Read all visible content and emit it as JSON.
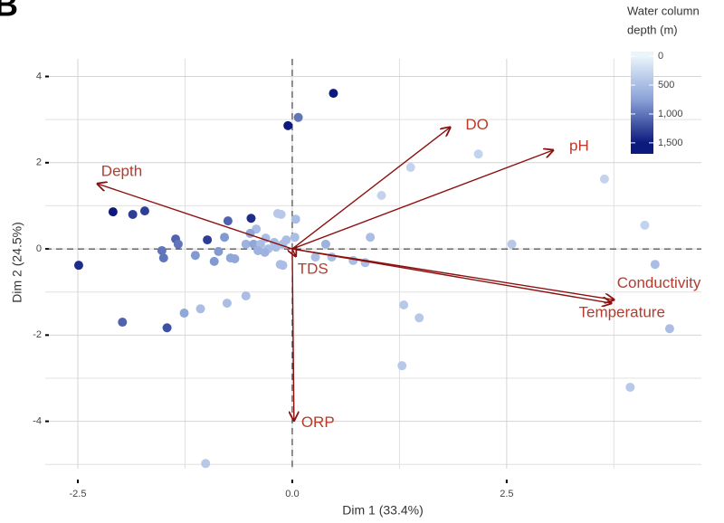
{
  "chart_data": {
    "type": "biplot",
    "panel_label": "B",
    "x_label": "Dim 1 (33.4%)",
    "y_label": "Dim 2 (24.5%)",
    "xlim": [
      -2.88,
      4.77
    ],
    "ylim": [
      -5.1,
      4.41
    ],
    "xticks": [
      -2.5,
      {
        "value": 0,
        "label": "0.0"
      },
      2.5
    ],
    "yticks": [
      -4,
      -2,
      0,
      2,
      4
    ],
    "x_minor_grid": [
      -1.25,
      1.25,
      3.75
    ],
    "y_minor_grid": [
      -5,
      -3,
      -1,
      1,
      3
    ],
    "grid": true,
    "reference_lines": [
      0,
      0
    ],
    "points": {
      "x": [
        0.48,
        0.07,
        -0.05,
        2.17,
        1.38,
        3.64,
        1.04,
        4.11,
        -2.09,
        -1.86,
        -1.72,
        -0.75,
        -0.48,
        -0.17,
        -0.13,
        0.04,
        -0.42,
        -1.36,
        -1.33,
        -0.99,
        -0.79,
        -0.49,
        -0.31,
        -0.21,
        -0.07,
        0.03,
        -0.54,
        -0.45,
        -0.37,
        -0.28,
        -0.19,
        -0.11,
        0.39,
        0.91,
        2.56,
        -1.52,
        -1.5,
        -1.13,
        -0.91,
        -0.86,
        -0.72,
        -0.67,
        -0.4,
        -0.32,
        0.27,
        0.46,
        0.71,
        0.85,
        4.23,
        -2.49,
        -0.11,
        -0.14,
        -0.54,
        -0.76,
        -1.07,
        -1.26,
        1.3,
        1.48,
        -1.98,
        -1.46,
        4.4,
        1.28,
        3.94,
        -1.01
      ],
      "y": [
        3.61,
        3.05,
        2.86,
        2.2,
        1.89,
        1.62,
        1.24,
        0.55,
        0.86,
        0.8,
        0.88,
        0.65,
        0.71,
        0.82,
        0.8,
        0.69,
        0.46,
        0.23,
        0.11,
        0.21,
        0.27,
        0.36,
        0.25,
        0.15,
        0.21,
        0.27,
        0.11,
        0.11,
        0.11,
        0.0,
        0.04,
        0.11,
        0.11,
        0.27,
        0.11,
        -0.04,
        -0.21,
        -0.15,
        -0.29,
        -0.06,
        -0.21,
        -0.23,
        -0.04,
        -0.08,
        -0.19,
        -0.19,
        -0.27,
        -0.32,
        -0.36,
        -0.38,
        -0.38,
        -0.36,
        -1.09,
        -1.26,
        -1.39,
        -1.49,
        -1.3,
        -1.6,
        -1.7,
        -1.83,
        -1.85,
        -2.71,
        -3.21,
        -4.98
      ],
      "depth": [
        1500,
        1000,
        1500,
        300,
        300,
        300,
        300,
        300,
        1500,
        1300,
        1300,
        1100,
        1400,
        400,
        400,
        500,
        500,
        1100,
        1000,
        1300,
        800,
        700,
        500,
        500,
        500,
        500,
        600,
        700,
        500,
        500,
        500,
        500,
        600,
        500,
        400,
        1000,
        1000,
        800,
        800,
        800,
        700,
        700,
        600,
        600,
        500,
        500,
        500,
        500,
        500,
        1400,
        500,
        500,
        500,
        500,
        500,
        700,
        400,
        400,
        1100,
        1200,
        500,
        400,
        400,
        400
      ]
    },
    "loadings": [
      {
        "name": "DO",
        "x": 1.84,
        "y": 2.82
      },
      {
        "name": "pH",
        "x": 3.04,
        "y": 2.29
      },
      {
        "name": "Depth",
        "x": -2.27,
        "y": 1.51
      },
      {
        "name": "Conductivity",
        "x": 3.75,
        "y": -1.18
      },
      {
        "name": "Temperature",
        "x": 3.72,
        "y": -1.26
      },
      {
        "name": "TDS",
        "x": 0.04,
        "y": -0.17
      },
      {
        "name": "ORP",
        "x": 0.02,
        "y": -3.98
      }
    ],
    "arrow_color": "#8b1010",
    "label_color": "#b83a2a",
    "colorbar": {
      "title_lines": [
        "Water column",
        "depth (m)"
      ],
      "lim": [
        -80,
        1690
      ],
      "ticks": [
        0,
        500,
        {
          "value": 1000,
          "label": "1,000"
        },
        {
          "value": 1500,
          "label": "1,500"
        }
      ],
      "colorscale": [
        [
          0,
          "#eaf4fb"
        ],
        [
          750,
          "#8aa2d8"
        ],
        [
          1500,
          "#0c1a7e"
        ]
      ]
    }
  }
}
